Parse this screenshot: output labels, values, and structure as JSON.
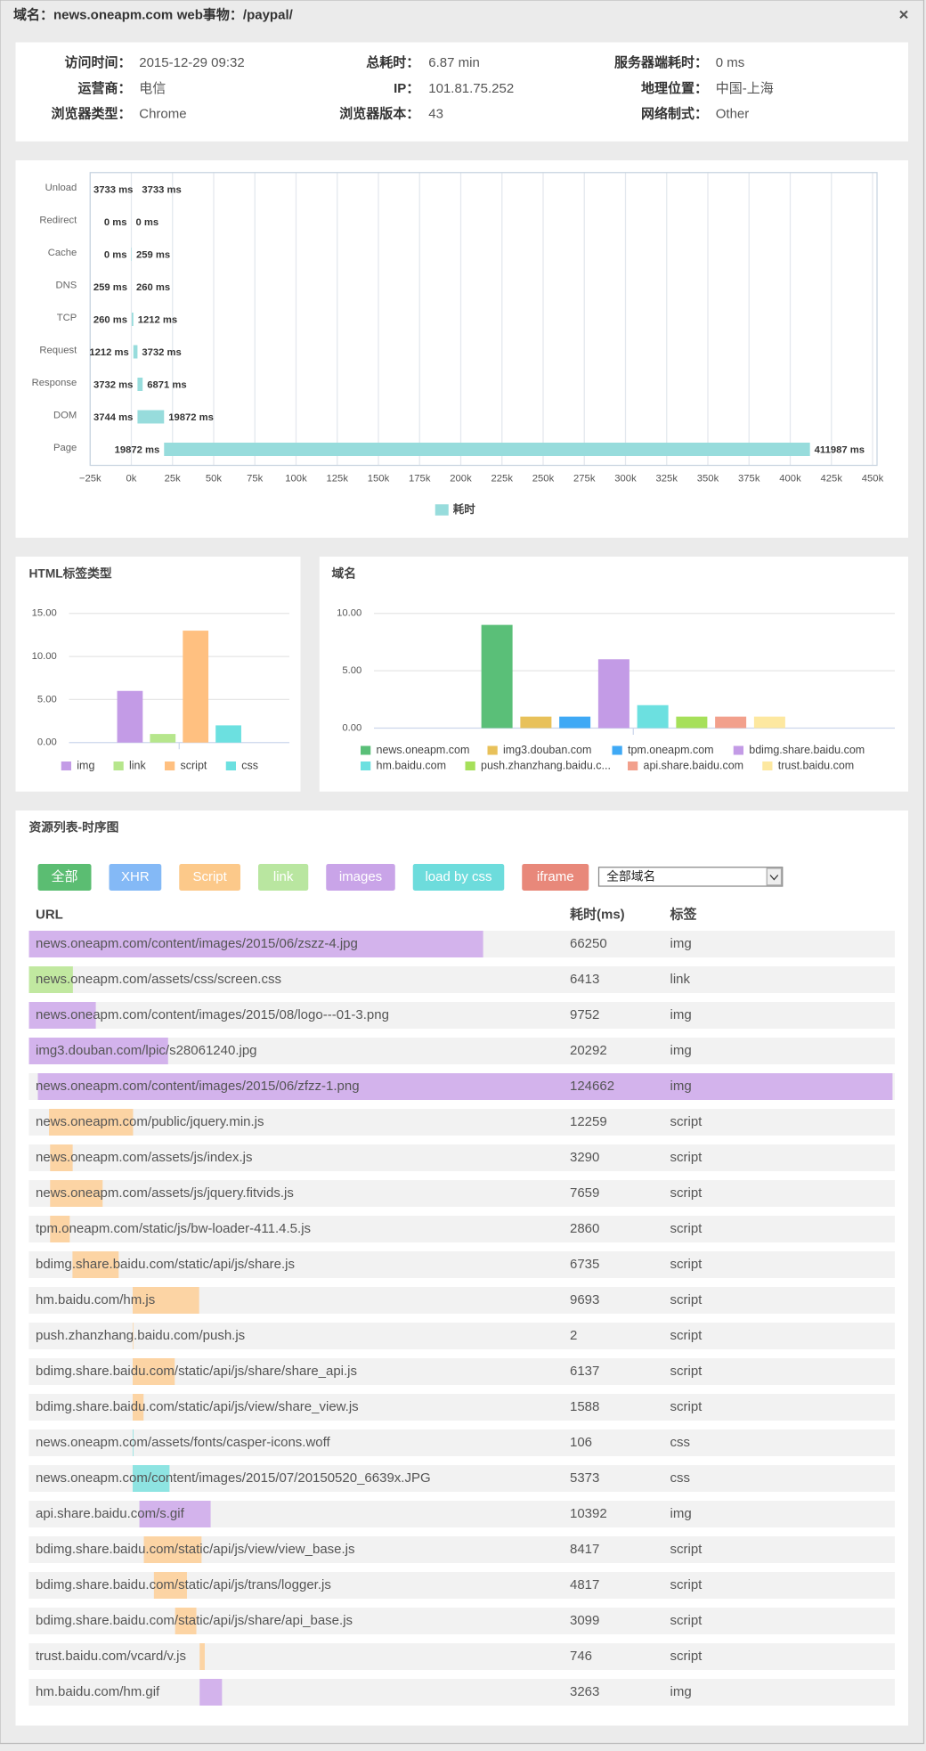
{
  "header": {
    "domain": "域名：news.oneapm.com",
    "transaction": "web事物：/paypal/",
    "close": "×"
  },
  "info": [
    {
      "label": "访问时间：",
      "value": "2015-12-29 09:32"
    },
    {
      "label": "总耗时：",
      "value": "6.87 min"
    },
    {
      "label": "服务器端耗时：",
      "value": "0 ms"
    },
    {
      "label": "运营商：",
      "value": "电信"
    },
    {
      "label": "IP：",
      "value": "101.81.75.252"
    },
    {
      "label": "地理位置：",
      "value": "中国-上海"
    },
    {
      "label": "浏览器类型：",
      "value": "Chrome"
    },
    {
      "label": "浏览器版本：",
      "value": "43"
    },
    {
      "label": "网络制式：",
      "value": "Other"
    }
  ],
  "chart_data": [
    {
      "type": "waterfall",
      "categories": [
        "Unload",
        "Redirect",
        "Cache",
        "DNS",
        "TCP",
        "Request",
        "Response",
        "DOM",
        "Page"
      ],
      "series": [
        {
          "name": "耗时",
          "color": "#97dcdc",
          "starts": [
            3733,
            0,
            0,
            259,
            260,
            1212,
            3732,
            3744,
            19872
          ],
          "start_labels": [
            "3733 ms",
            "0 ms",
            "0 ms",
            "259 ms",
            "260 ms",
            "1212 ms",
            "3732 ms",
            "3744 ms",
            "19872 ms"
          ],
          "values": [
            3733,
            0,
            259,
            260,
            1212,
            3732,
            6871,
            19872,
            411987
          ],
          "value_labels": [
            "3733 ms",
            "0 ms",
            "259 ms",
            "260 ms",
            "1212 ms",
            "3732 ms",
            "6871 ms",
            "19872 ms",
            "411987 ms"
          ]
        }
      ],
      "xlim": [
        -25000,
        450000
      ],
      "xticks": [
        {
          "value": -25000,
          "label": "−25k"
        },
        {
          "value": 0,
          "label": "0k"
        },
        {
          "value": 25000,
          "label": "25k"
        },
        {
          "value": 50000,
          "label": "50k"
        },
        {
          "value": 75000,
          "label": "75k"
        },
        {
          "value": 100000,
          "label": "100k"
        },
        {
          "value": 125000,
          "label": "125k"
        },
        {
          "value": 150000,
          "label": "150k"
        },
        {
          "value": 175000,
          "label": "175k"
        },
        {
          "value": 200000,
          "label": "200k"
        },
        {
          "value": 225000,
          "label": "225k"
        },
        {
          "value": 250000,
          "label": "250k"
        },
        {
          "value": 275000,
          "label": "275k"
        },
        {
          "value": 300000,
          "label": "300k"
        },
        {
          "value": 325000,
          "label": "325k"
        },
        {
          "value": 350000,
          "label": "350k"
        },
        {
          "value": 375000,
          "label": "375k"
        },
        {
          "value": 400000,
          "label": "400k"
        },
        {
          "value": 425000,
          "label": "425k"
        },
        {
          "value": 450000,
          "label": "450k"
        }
      ],
      "grid": true
    },
    {
      "type": "bar",
      "title": "HTML标签类型",
      "series": [
        {
          "name": "img",
          "color": "#c39be6",
          "values": [
            6
          ]
        },
        {
          "name": "link",
          "color": "#b6e68c",
          "values": [
            1
          ]
        },
        {
          "name": "script",
          "color": "#ffc080",
          "values": [
            13
          ]
        },
        {
          "name": "css",
          "color": "#6ce0e0",
          "values": [
            2
          ]
        }
      ],
      "ylim": [
        0,
        15
      ],
      "yticks": [
        {
          "value": 0,
          "label": "0.00"
        },
        {
          "value": 5,
          "label": "5.00"
        },
        {
          "value": 10,
          "label": "10.00"
        },
        {
          "value": 15,
          "label": "15.00"
        }
      ],
      "grid": true
    },
    {
      "type": "bar",
      "title": "域名",
      "series": [
        {
          "name": "news.oneapm.com",
          "color": "#5abf78",
          "values": [
            9
          ]
        },
        {
          "name": "img3.douban.com",
          "color": "#e8c15a",
          "values": [
            1
          ]
        },
        {
          "name": "tpm.oneapm.com",
          "color": "#3fa9f5",
          "values": [
            1
          ]
        },
        {
          "name": "bdimg.share.baidu.com",
          "color": "#c39be6",
          "values": [
            6
          ]
        },
        {
          "name": "hm.baidu.com",
          "color": "#6ce0e0",
          "values": [
            2
          ]
        },
        {
          "name": "push.zhanzhang.baidu.c...",
          "color": "#a6e05a",
          "values": [
            1
          ]
        },
        {
          "name": "api.share.baidu.com",
          "color": "#f2a08c",
          "values": [
            1
          ]
        },
        {
          "name": "trust.baidu.com",
          "color": "#fde8a0",
          "values": [
            1
          ]
        }
      ],
      "ylim": [
        0,
        10
      ],
      "yticks": [
        {
          "value": 0,
          "label": "0.00"
        },
        {
          "value": 5,
          "label": "5.00"
        },
        {
          "value": 10,
          "label": "10.00"
        }
      ],
      "grid": true
    }
  ],
  "resources": {
    "title": "资源列表-时序图",
    "buttons": [
      {
        "label": "全部",
        "color": "#5bbd72"
      },
      {
        "label": "XHR",
        "color": "#84b9f6"
      },
      {
        "label": "Script",
        "color": "#fcc98a"
      },
      {
        "label": "link",
        "color": "#b9e6a0"
      },
      {
        "label": "images",
        "color": "#c9a4e8"
      },
      {
        "label": "load by css",
        "color": "#6ddcdc"
      },
      {
        "label": "iframe",
        "color": "#e8887a"
      }
    ],
    "select": "全部域名",
    "columns": [
      "URL",
      "耗时(ms)",
      "标签"
    ],
    "tag_colors": {
      "img": "#d3b3ec",
      "link": "#c1e8a0",
      "script": "#fcd4a4",
      "css": "#8ee4e2"
    },
    "xlim": [
      0,
      126300
    ],
    "rows": [
      {
        "url": "news.oneapm.com/content/images/2015/06/zszz-4.jpg",
        "duration": 66250,
        "tag": "img",
        "start": 0
      },
      {
        "url": "news.oneapm.com/assets/css/screen.css",
        "duration": 6413,
        "tag": "link",
        "start": 0
      },
      {
        "url": "news.oneapm.com/content/images/2015/08/logo---01-3.png",
        "duration": 9752,
        "tag": "img",
        "start": 0
      },
      {
        "url": "img3.douban.com/lpic/s28061240.jpg",
        "duration": 20292,
        "tag": "img",
        "start": 0
      },
      {
        "url": "news.oneapm.com/content/images/2015/06/zfzz-1.png",
        "duration": 124662,
        "tag": "img",
        "start": 1300
      },
      {
        "url": "news.oneapm.com/public/jquery.min.js",
        "duration": 12259,
        "tag": "script",
        "start": 2930
      },
      {
        "url": "news.oneapm.com/assets/js/index.js",
        "duration": 3290,
        "tag": "script",
        "start": 3090
      },
      {
        "url": "news.oneapm.com/assets/js/jquery.fitvids.js",
        "duration": 7659,
        "tag": "script",
        "start": 3090
      },
      {
        "url": "tpm.oneapm.com/static/js/bw-loader-411.4.5.js",
        "duration": 2860,
        "tag": "script",
        "start": 3090
      },
      {
        "url": "bdimg.share.baidu.com/static/api/js/share.js",
        "duration": 6735,
        "tag": "script",
        "start": 6350
      },
      {
        "url": "hm.baidu.com/hm.js",
        "duration": 9693,
        "tag": "script",
        "start": 15130
      },
      {
        "url": "push.zhanzhang.baidu.com/push.js",
        "duration": 2,
        "tag": "script",
        "start": 15130
      },
      {
        "url": "bdimg.share.baidu.com/static/api/js/share/share_api.js",
        "duration": 6137,
        "tag": "script",
        "start": 15130
      },
      {
        "url": "bdimg.share.baidu.com/static/api/js/view/share_view.js",
        "duration": 1588,
        "tag": "script",
        "start": 15130
      },
      {
        "url": "news.oneapm.com/assets/fonts/casper-icons.woff",
        "duration": 106,
        "tag": "css",
        "start": 15130
      },
      {
        "url": "news.oneapm.com/content/images/2015/07/20150520_6639x.JPG",
        "duration": 5373,
        "tag": "css",
        "start": 15130
      },
      {
        "url": "api.share.baidu.com/s.gif",
        "duration": 10392,
        "tag": "img",
        "start": 16110
      },
      {
        "url": "bdimg.share.baidu.com/static/api/js/view/view_base.js",
        "duration": 8417,
        "tag": "script",
        "start": 16760
      },
      {
        "url": "bdimg.share.baidu.com/static/api/js/trans/logger.js",
        "duration": 4817,
        "tag": "script",
        "start": 18230
      },
      {
        "url": "bdimg.share.baidu.com/static/api/js/share/api_base.js",
        "duration": 3099,
        "tag": "script",
        "start": 21320
      },
      {
        "url": "trust.baidu.com/vcard/v.js",
        "duration": 746,
        "tag": "script",
        "start": 24900
      },
      {
        "url": "hm.baidu.com/hm.gif",
        "duration": 3263,
        "tag": "img",
        "start": 24900
      }
    ]
  }
}
